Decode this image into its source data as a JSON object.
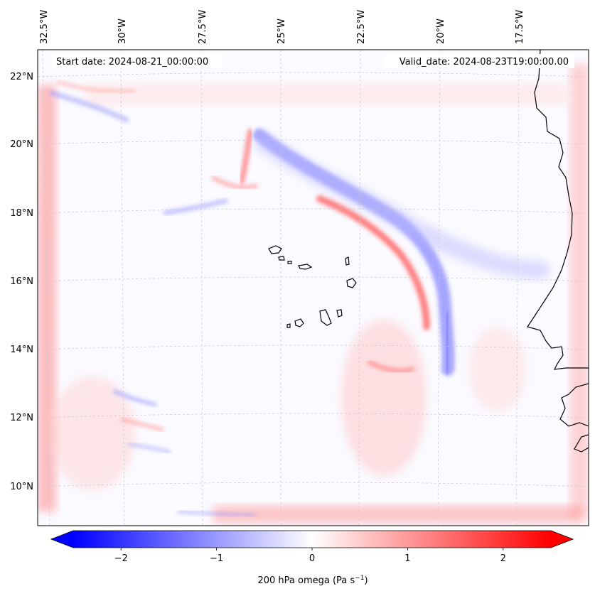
{
  "map": {
    "start_date": "Start date: 2024-08-21_00:00:00",
    "valid_date": "Valid_date: 2024-08-23T19:00:00.00",
    "lon_labels": [
      "32.5°W",
      "30°W",
      "27.5°W",
      "25°W",
      "22.5°W",
      "20°W",
      "17.5°W"
    ],
    "lat_labels": [
      "22°N",
      "20°N",
      "18°N",
      "16°N",
      "14°N",
      "12°N",
      "10°N"
    ],
    "field": "200 hPa omega",
    "colorbar": {
      "label_main": "200 hPa omega (Pa s",
      "label_exp": "−1",
      "label_close": ")",
      "ticks": [
        {
          "value": -2,
          "label": "−2"
        },
        {
          "value": -1,
          "label": "−1"
        },
        {
          "value": 0,
          "label": "0"
        },
        {
          "value": 1,
          "label": "1"
        },
        {
          "value": 2,
          "label": "2"
        }
      ],
      "range": [
        -2.5,
        2.5
      ],
      "colors": {
        "neg": "#0000ff",
        "mid": "#ffffff",
        "pos": "#ff0000"
      },
      "extend": "both"
    },
    "colors": {
      "land_outline": "#000000",
      "background": "#fafaff",
      "grid": "#c8c8c8"
    }
  }
}
